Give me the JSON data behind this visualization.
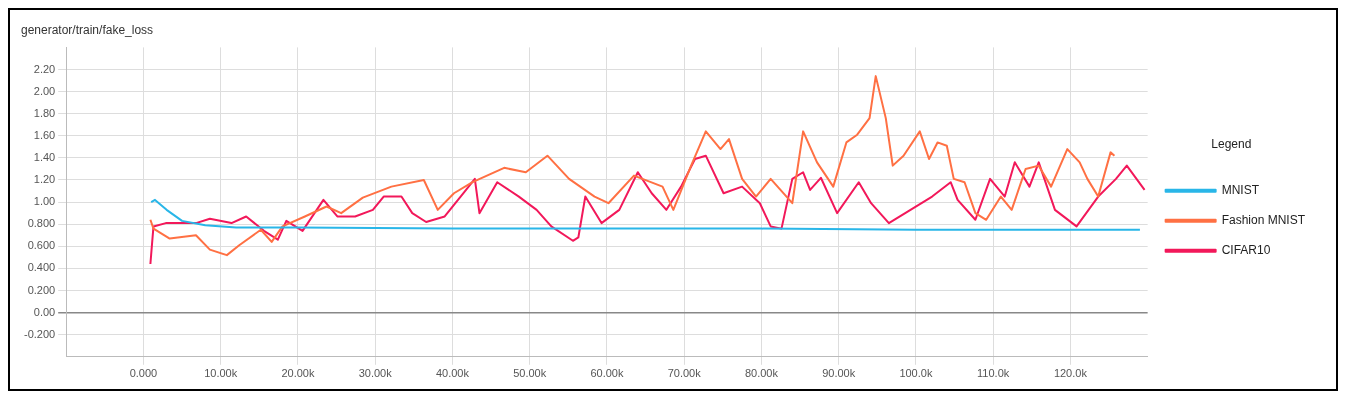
{
  "chart_data": {
    "type": "line",
    "title": "generator/train/fake_loss",
    "legend_title": "Legend",
    "legend": "right",
    "grid": true,
    "marker": "none",
    "line_style": "solid",
    "xlim": [
      -10000,
      130000
    ],
    "ylim": [
      -0.4,
      2.4
    ],
    "xticks": [
      {
        "value": 0,
        "label": "0.000"
      },
      {
        "value": 10000,
        "label": "10.00k"
      },
      {
        "value": 20000,
        "label": "20.00k"
      },
      {
        "value": 30000,
        "label": "30.00k"
      },
      {
        "value": 40000,
        "label": "40.00k"
      },
      {
        "value": 50000,
        "label": "50.00k"
      },
      {
        "value": 60000,
        "label": "60.00k"
      },
      {
        "value": 70000,
        "label": "70.00k"
      },
      {
        "value": 80000,
        "label": "80.00k"
      },
      {
        "value": 90000,
        "label": "90.00k"
      },
      {
        "value": 100000,
        "label": "100.0k"
      },
      {
        "value": 110000,
        "label": "110.0k"
      },
      {
        "value": 120000,
        "label": "120.0k"
      }
    ],
    "yticks": [
      {
        "value": -0.2,
        "label": "-0.200"
      },
      {
        "value": 0,
        "label": "0.00"
      },
      {
        "value": 0.2,
        "label": "0.200"
      },
      {
        "value": 0.4,
        "label": "0.400"
      },
      {
        "value": 0.6,
        "label": "0.600"
      },
      {
        "value": 0.8,
        "label": "0.800"
      },
      {
        "value": 1.0,
        "label": "1.00"
      },
      {
        "value": 1.2,
        "label": "1.20"
      },
      {
        "value": 1.4,
        "label": "1.40"
      },
      {
        "value": 1.6,
        "label": "1.60"
      },
      {
        "value": 1.8,
        "label": "1.80"
      },
      {
        "value": 2.0,
        "label": "2.00"
      },
      {
        "value": 2.2,
        "label": "2.20"
      }
    ],
    "series": [
      {
        "name": "MNIST",
        "color": "#29b6e8",
        "x": [
          1000,
          1500,
          3000,
          5000,
          8000,
          12000,
          20000,
          40000,
          60000,
          80000,
          100000,
          120000,
          129000
        ],
        "values": [
          1.0,
          1.02,
          0.93,
          0.83,
          0.79,
          0.77,
          0.77,
          0.76,
          0.76,
          0.76,
          0.75,
          0.75,
          0.75
        ]
      },
      {
        "name": "Fashion MNIST",
        "color": "#ff7043",
        "x": [
          900,
          1300,
          3400,
          6800,
          8600,
          10800,
          12400,
          15200,
          16600,
          18000,
          20900,
          23700,
          25600,
          28400,
          32100,
          36300,
          38100,
          40200,
          42600,
          46700,
          49500,
          52300,
          55100,
          58400,
          60200,
          63500,
          67200,
          68600,
          70900,
          72800,
          74700,
          75800,
          77500,
          79300,
          81200,
          84000,
          85400,
          87200,
          89300,
          91000,
          92400,
          94000,
          94800,
          96100,
          97000,
          98400,
          100500,
          101700,
          102800,
          104000,
          104900,
          106300,
          107700,
          109100,
          111000,
          112400,
          114200,
          115900,
          117500,
          119600,
          121200,
          122200,
          123600,
          125200,
          125700
        ],
        "values": [
          0.84,
          0.76,
          0.67,
          0.7,
          0.57,
          0.52,
          0.61,
          0.75,
          0.64,
          0.78,
          0.87,
          0.96,
          0.9,
          1.04,
          1.14,
          1.2,
          0.93,
          1.08,
          1.18,
          1.31,
          1.27,
          1.42,
          1.21,
          1.05,
          0.99,
          1.24,
          1.14,
          0.93,
          1.33,
          1.64,
          1.48,
          1.57,
          1.21,
          1.05,
          1.21,
          0.99,
          1.64,
          1.36,
          1.14,
          1.54,
          1.61,
          1.76,
          2.14,
          1.76,
          1.33,
          1.42,
          1.64,
          1.39,
          1.54,
          1.51,
          1.21,
          1.18,
          0.9,
          0.84,
          1.05,
          0.93,
          1.3,
          1.33,
          1.14,
          1.48,
          1.36,
          1.21,
          1.05,
          1.45,
          1.42
        ]
      },
      {
        "name": "CIFAR10",
        "color": "#f2185a",
        "x": [
          900,
          1300,
          2900,
          6800,
          8600,
          11400,
          13300,
          15600,
          17400,
          18500,
          20600,
          23300,
          25100,
          27400,
          29700,
          31100,
          33400,
          34800,
          36600,
          39000,
          41400,
          42900,
          43500,
          45800,
          48600,
          50900,
          52800,
          55600,
          56300,
          57200,
          59300,
          61600,
          64000,
          65800,
          67700,
          69600,
          71400,
          72800,
          75100,
          77500,
          79800,
          81200,
          82600,
          84000,
          85400,
          86300,
          87700,
          89800,
          92600,
          94200,
          96500,
          99300,
          102100,
          104500,
          105400,
          107700,
          109600,
          111500,
          112800,
          114700,
          115900,
          118000,
          120800,
          123600,
          125900,
          127300,
          129600
        ],
        "values": [
          0.44,
          0.78,
          0.81,
          0.81,
          0.85,
          0.81,
          0.87,
          0.74,
          0.66,
          0.83,
          0.74,
          1.02,
          0.87,
          0.87,
          0.93,
          1.05,
          1.05,
          0.9,
          0.82,
          0.87,
          1.08,
          1.21,
          0.9,
          1.18,
          1.05,
          0.93,
          0.78,
          0.65,
          0.68,
          1.05,
          0.81,
          0.93,
          1.27,
          1.08,
          0.93,
          1.14,
          1.39,
          1.42,
          1.08,
          1.14,
          0.99,
          0.78,
          0.76,
          1.21,
          1.27,
          1.11,
          1.22,
          0.9,
          1.18,
          0.99,
          0.81,
          0.93,
          1.05,
          1.18,
          1.02,
          0.84,
          1.21,
          1.05,
          1.36,
          1.14,
          1.36,
          0.93,
          0.78,
          1.05,
          1.21,
          1.33,
          1.11
        ]
      }
    ]
  }
}
